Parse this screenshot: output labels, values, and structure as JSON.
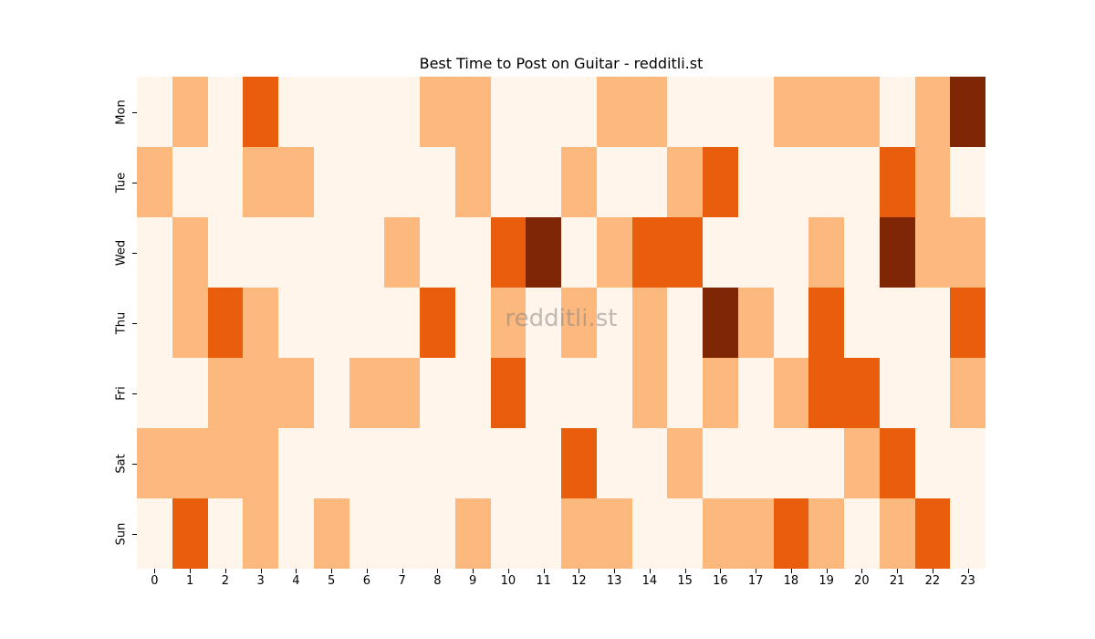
{
  "chart_data": {
    "type": "heatmap",
    "title": "Best Time to Post on Guitar - redditli.st",
    "xlabel": "",
    "ylabel": "",
    "x": [
      "0",
      "1",
      "2",
      "3",
      "4",
      "5",
      "6",
      "7",
      "8",
      "9",
      "10",
      "11",
      "12",
      "13",
      "14",
      "15",
      "16",
      "17",
      "18",
      "19",
      "20",
      "21",
      "22",
      "23"
    ],
    "y": [
      "Mon",
      "Tue",
      "Wed",
      "Thu",
      "Fri",
      "Sat",
      "Sun"
    ],
    "values": [
      [
        0,
        1,
        0,
        2,
        0,
        0,
        0,
        0,
        1,
        1,
        0,
        0,
        0,
        1,
        1,
        0,
        0,
        0,
        1,
        1,
        1,
        0,
        1,
        3
      ],
      [
        1,
        0,
        0,
        1,
        1,
        0,
        0,
        0,
        0,
        1,
        0,
        0,
        1,
        0,
        0,
        1,
        2,
        0,
        0,
        0,
        0,
        2,
        1,
        0
      ],
      [
        0,
        1,
        0,
        0,
        0,
        0,
        0,
        1,
        0,
        0,
        2,
        3,
        0,
        1,
        2,
        2,
        0,
        0,
        0,
        1,
        0,
        3,
        1,
        1
      ],
      [
        0,
        1,
        2,
        1,
        0,
        0,
        0,
        0,
        2,
        0,
        1,
        0,
        1,
        0,
        1,
        0,
        3,
        1,
        0,
        2,
        0,
        0,
        0,
        2
      ],
      [
        0,
        0,
        1,
        1,
        1,
        0,
        1,
        1,
        0,
        0,
        2,
        0,
        0,
        0,
        1,
        0,
        1,
        0,
        1,
        2,
        2,
        0,
        0,
        1
      ],
      [
        1,
        1,
        1,
        1,
        0,
        0,
        0,
        0,
        0,
        0,
        0,
        0,
        2,
        0,
        0,
        1,
        0,
        0,
        0,
        0,
        1,
        2,
        0,
        0
      ],
      [
        0,
        2,
        0,
        1,
        0,
        1,
        0,
        0,
        0,
        1,
        0,
        0,
        1,
        1,
        0,
        0,
        1,
        1,
        2,
        1,
        0,
        1,
        2,
        0
      ]
    ],
    "colormap": "Oranges",
    "colorbar": false,
    "grid": false
  },
  "colors": {
    "levels": [
      "#fff5eb",
      "#fdb97d",
      "#e95e0d",
      "#7f2704"
    ]
  },
  "watermark": "redditli.st"
}
